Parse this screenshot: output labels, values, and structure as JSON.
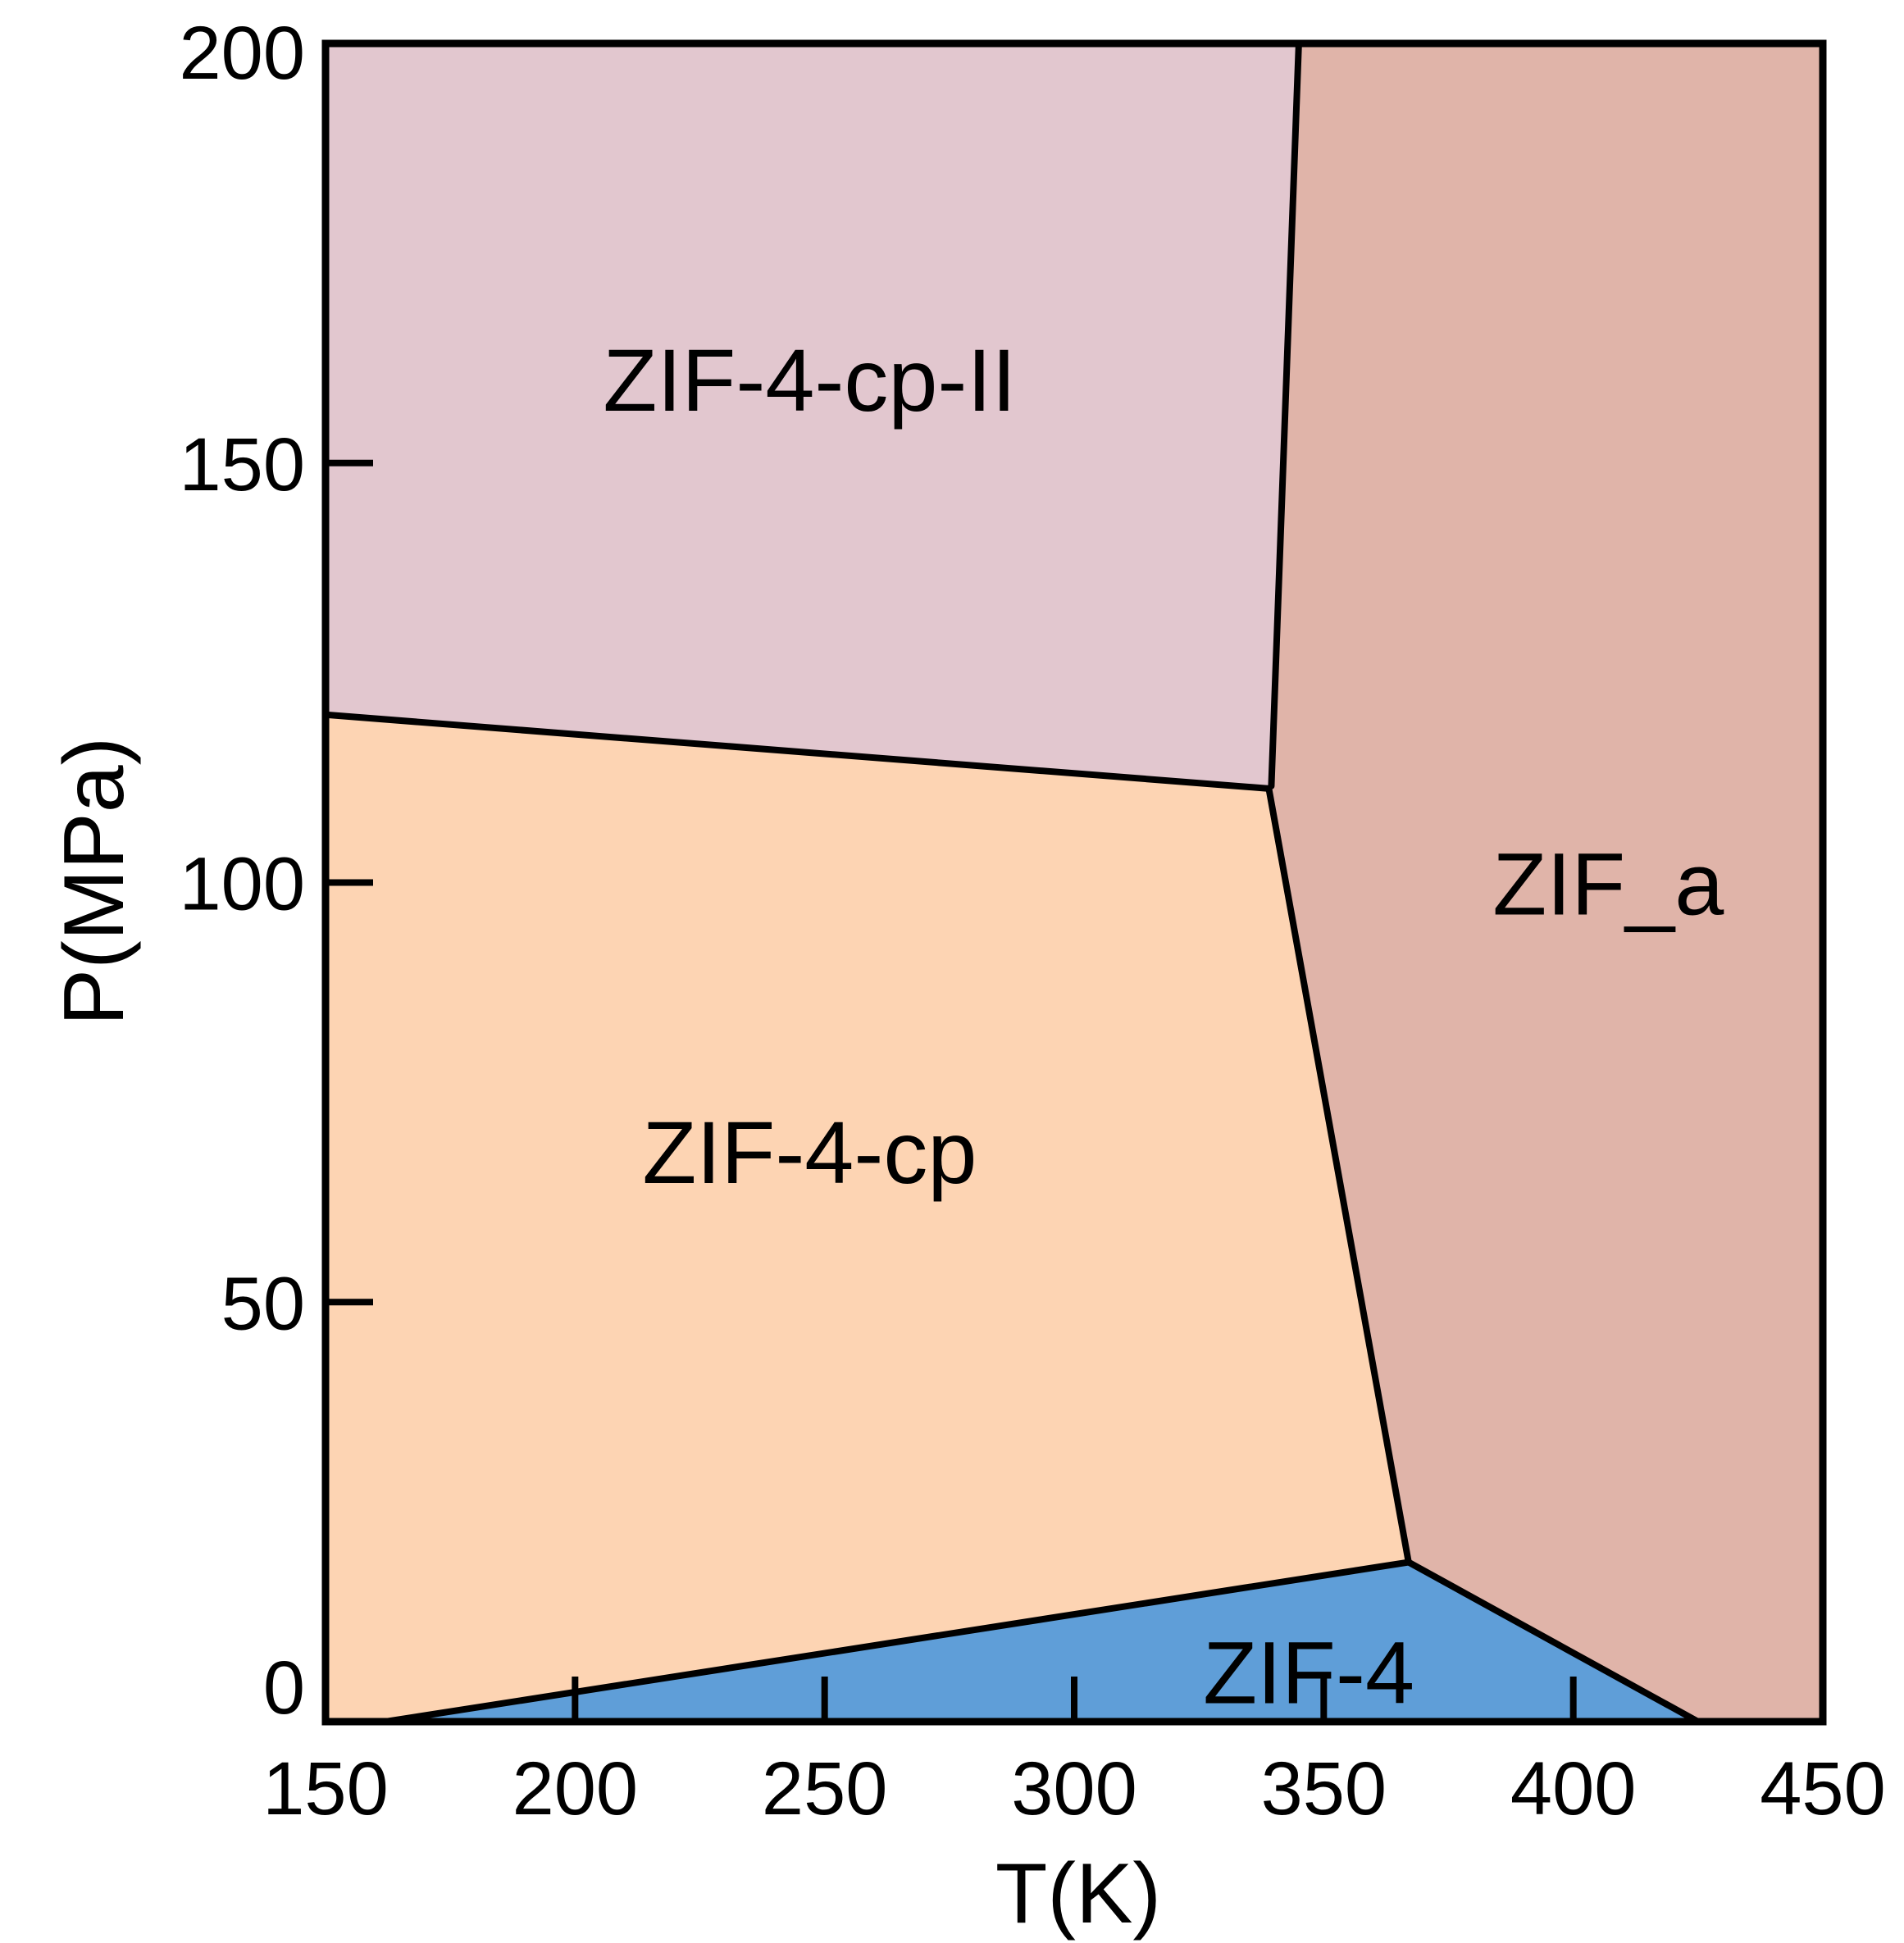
{
  "chart_data": {
    "type": "phase-diagram",
    "xlabel": "T(K)",
    "ylabel": "P(MPa)",
    "xlim": [
      150,
      450
    ],
    "ylim": [
      0,
      200
    ],
    "xticks": [
      150,
      200,
      250,
      300,
      350,
      400,
      450
    ],
    "yticks": [
      0,
      50,
      100,
      150,
      200
    ],
    "regions": [
      {
        "name": "ZIF-4-cp-II",
        "color": "#e2c7cf",
        "polygon": [
          [
            150,
            120
          ],
          [
            150,
            200
          ],
          [
            345,
            200
          ],
          [
            339.5,
            111.5
          ],
          [
            339,
            111.2
          ]
        ],
        "label_at": [
          247,
          159
        ]
      },
      {
        "name": "ZIF_a",
        "color": "#e0b4a9",
        "polygon": [
          [
            345,
            200
          ],
          [
            450,
            200
          ],
          [
            450,
            0
          ],
          [
            425,
            0
          ],
          [
            367,
            19
          ],
          [
            339.5,
            111.5
          ]
        ],
        "label_at": [
          407,
          99
        ]
      },
      {
        "name": "ZIF-4-cp",
        "color": "#fdd4b3",
        "polygon": [
          [
            150,
            120
          ],
          [
            339,
            111.2
          ],
          [
            339.5,
            111.5
          ],
          [
            367,
            19
          ],
          [
            162,
            0
          ],
          [
            150,
            0
          ]
        ],
        "label_at": [
          247,
          67
        ]
      },
      {
        "name": "ZIF-4",
        "color": "#5f9ed8",
        "polygon": [
          [
            162,
            0
          ],
          [
            367,
            19
          ],
          [
            425,
            0
          ]
        ],
        "label_at": [
          347,
          5
        ]
      }
    ],
    "boundaries": [
      {
        "points": [
          [
            150,
            120
          ],
          [
            339,
            111.2
          ]
        ]
      },
      {
        "points": [
          [
            339.5,
            111.5
          ],
          [
            345,
            200
          ]
        ]
      },
      {
        "points": [
          [
            339,
            111.2
          ],
          [
            367,
            19
          ]
        ]
      },
      {
        "points": [
          [
            162,
            0
          ],
          [
            367,
            19
          ]
        ]
      },
      {
        "points": [
          [
            367,
            19
          ],
          [
            425,
            0
          ]
        ]
      }
    ]
  }
}
